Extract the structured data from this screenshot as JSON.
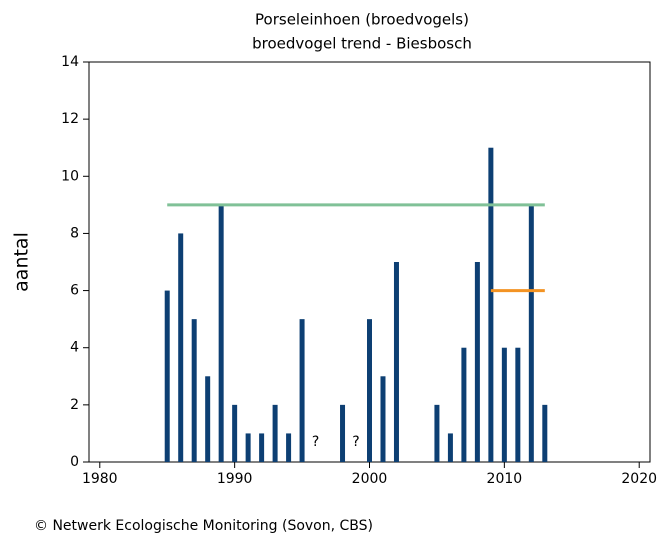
{
  "chart_data": {
    "type": "bar",
    "title": "Porseleinhoen (broedvogels)",
    "subtitle": "broedvogel trend - Biesbosch",
    "y_label": "aantal",
    "footer": "© Netwerk Ecologische Monitoring (Sovon, CBS)",
    "x": [
      1985,
      1986,
      1987,
      1988,
      1989,
      1990,
      1991,
      1992,
      1993,
      1994,
      1995,
      1998,
      2000,
      2001,
      2002,
      2005,
      2006,
      2007,
      2008,
      2009,
      2010,
      2011,
      2012,
      2013
    ],
    "values": [
      6,
      8,
      5,
      3,
      9,
      2,
      1,
      1,
      2,
      1,
      5,
      2,
      5,
      3,
      7,
      2,
      1,
      4,
      7,
      11,
      4,
      4,
      9,
      2
    ],
    "color": "#0d3f73",
    "annotations": [
      {
        "x": 1996,
        "label": "?"
      },
      {
        "x": 1999,
        "label": "?"
      }
    ],
    "lines": [
      {
        "color": "#80c197",
        "x": [
          1985,
          2013
        ],
        "values": [
          9,
          9
        ]
      },
      {
        "color": "#f39323",
        "x": [
          2009,
          2013
        ],
        "values": [
          6,
          6
        ]
      }
    ],
    "xlim": [
      1979.2,
      2020.8
    ],
    "xticks": [
      1980,
      1990,
      2000,
      2010,
      2020
    ],
    "ylim": [
      0,
      14
    ],
    "yticks": [
      0,
      2,
      4,
      6,
      8,
      10,
      12,
      14
    ]
  }
}
